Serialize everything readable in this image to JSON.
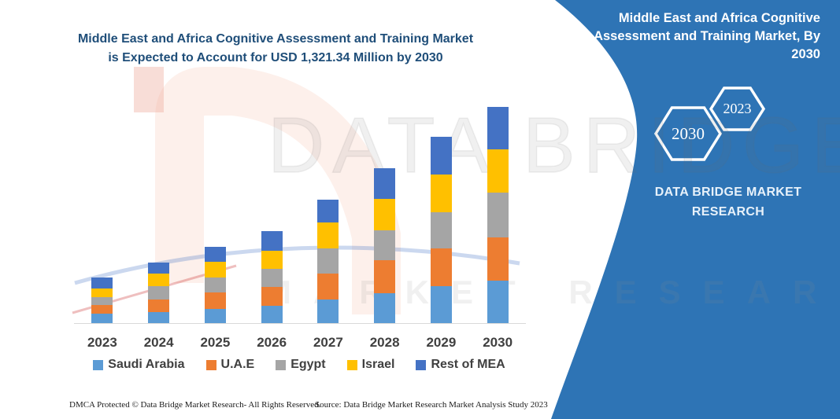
{
  "colors": {
    "panel_blue": "#2E74B5",
    "title_navy": "#1F4E79",
    "axis_gray": "#D9D9D9",
    "label_gray": "#404040",
    "panel_text": "#E7F1FA"
  },
  "headline": {
    "line1": "Middle East and Africa Cognitive Assessment and Training Market",
    "line2": "is Expected to Account for USD 1,321.34 Million by 2030"
  },
  "panel": {
    "title": "Middle East and Africa Cognitive Assessment and Training Market, By 2030",
    "hex_large": "2030",
    "hex_small": "2023",
    "brand_line1": "DATA BRIDGE MARKET",
    "brand_line2": "RESEARCH"
  },
  "watermark": {
    "text_primary": "DATA BRIDGE",
    "text_secondary": "MARKET RESEARCH"
  },
  "footer": {
    "dmca": "DMCA Protected © Data Bridge Market Research-  All Rights Reserved.",
    "source": "Source: Data Bridge Market Research  Market Analysis Study 2023"
  },
  "chart_data": {
    "type": "bar",
    "stacked": true,
    "title": "Middle East and Africa Cognitive Assessment and Training Market is Expected to Account for USD 1,321.34 Million by 2030",
    "unit": "USD Million",
    "categories": [
      "2023",
      "2024",
      "2025",
      "2026",
      "2027",
      "2028",
      "2029",
      "2030"
    ],
    "series": [
      {
        "name": "Saudi Arabia",
        "color": "#5B9BD5",
        "values": [
          57,
          69,
          86,
          104,
          144,
          185,
          225,
          262
        ]
      },
      {
        "name": "U.A.E",
        "color": "#ED7D31",
        "values": [
          55,
          76,
          101,
          117,
          161,
          200,
          233,
          263
        ]
      },
      {
        "name": "Egypt",
        "color": "#A5A5A5",
        "values": [
          47,
          80,
          94,
          111,
          152,
          180,
          220,
          273
        ]
      },
      {
        "name": "Israel",
        "color": "#FFC000",
        "values": [
          51,
          80,
          96,
          112,
          156,
          193,
          230,
          265
        ]
      },
      {
        "name": "Rest of MEA",
        "color": "#4472C4",
        "values": [
          70,
          65,
          90,
          117,
          141,
          189,
          229,
          258.34
        ]
      }
    ],
    "totals": [
      280,
      370,
      467,
      561,
      754,
      947,
      1137,
      1321.34
    ],
    "ylim": [
      0,
      1400
    ],
    "grid": false,
    "legend_position": "bottom"
  }
}
